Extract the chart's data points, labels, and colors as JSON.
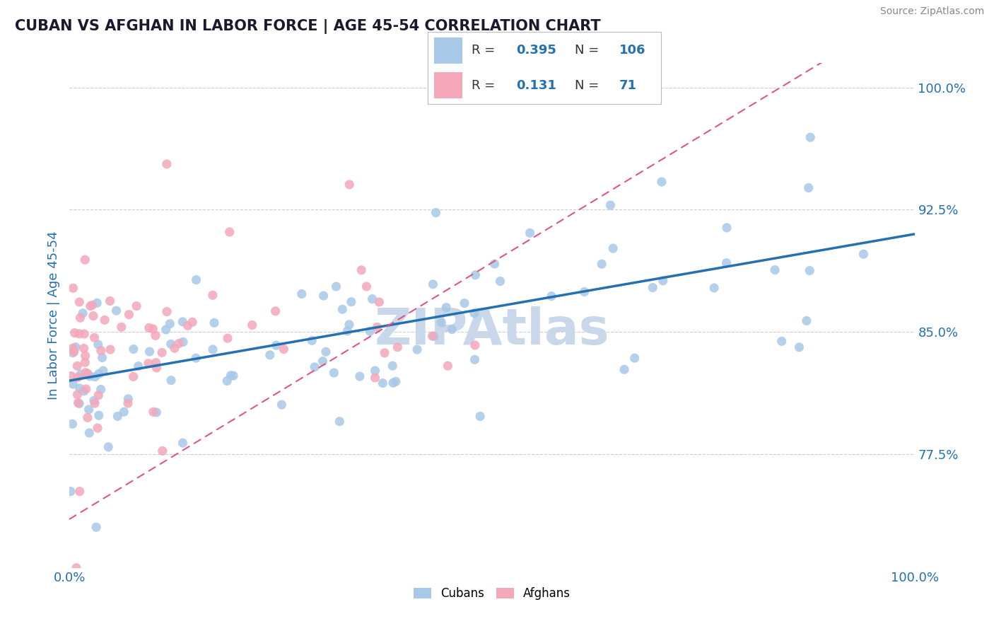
{
  "title": "CUBAN VS AFGHAN IN LABOR FORCE | AGE 45-54 CORRELATION CHART",
  "source_text": "Source: ZipAtlas.com",
  "ylabel": "In Labor Force | Age 45-54",
  "xlim": [
    0.0,
    1.0
  ],
  "ylim": [
    0.705,
    1.015
  ],
  "yticks": [
    0.775,
    0.85,
    0.925,
    1.0
  ],
  "ytick_labels": [
    "77.5%",
    "85.0%",
    "92.5%",
    "100.0%"
  ],
  "xtick_labels": [
    "0.0%",
    "100.0%"
  ],
  "xticks": [
    0.0,
    1.0
  ],
  "cuban_R": 0.395,
  "cuban_N": 106,
  "afghan_R": 0.131,
  "afghan_N": 71,
  "cuban_color": "#a8c8e8",
  "cuban_line_color": "#2470b0",
  "afghan_color": "#f4a7b9",
  "afghan_line_color": "#e05585",
  "watermark": "ZIPAtlas",
  "watermark_color": "#c8d8ea",
  "background_color": "#ffffff",
  "grid_color": "#cccccc",
  "title_color": "#1a1a2e",
  "axis_label_color": "#2470b0",
  "legend_R_color": "#2470b0"
}
